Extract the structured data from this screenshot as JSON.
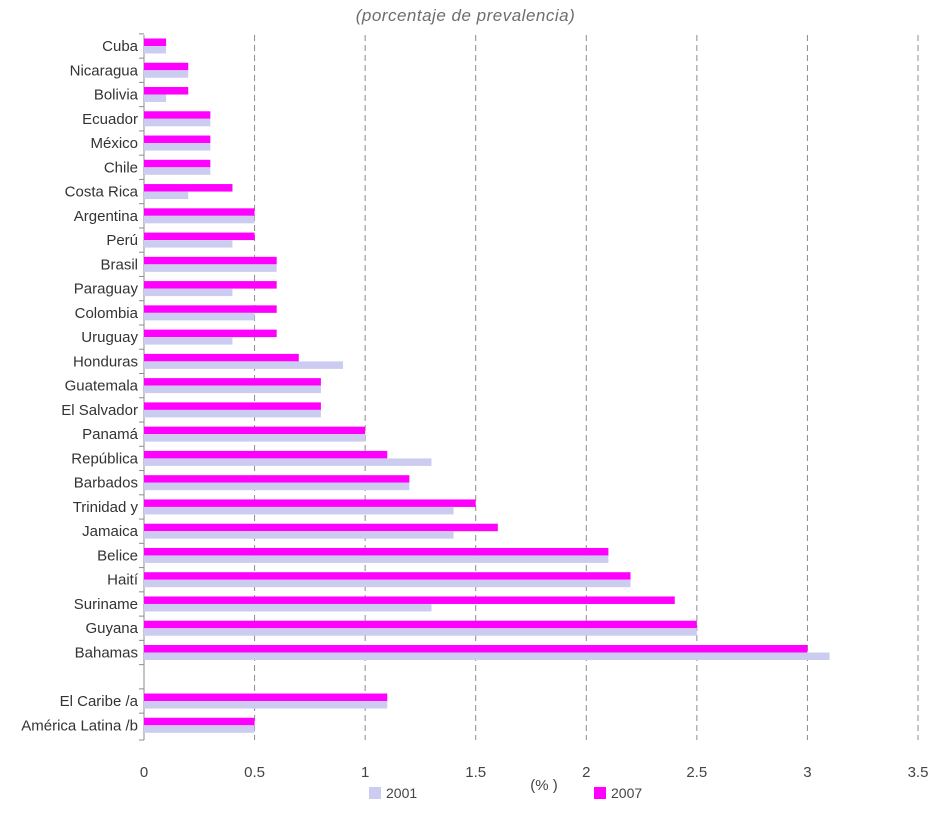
{
  "chart_data": {
    "type": "bar",
    "orientation": "horizontal",
    "subtitle": "(porcentaje de prevalencia)",
    "xlabel": "(% )",
    "xlim": [
      0,
      3.5
    ],
    "xticks": [
      "0",
      "0.5",
      "1",
      "1.5",
      "2",
      "2.5",
      "3",
      "3.5"
    ],
    "grid": "vertical-dashed",
    "legend_position": "bottom",
    "colors": {
      "2001": "#ccccf0",
      "2007": "#ff00ff"
    },
    "categories": [
      "Cuba",
      "Nicaragua",
      "Bolivia",
      "Ecuador",
      "México",
      "Chile",
      "Costa Rica",
      "Argentina",
      "Perú",
      "Brasil",
      "Paraguay",
      "Colombia",
      "Uruguay",
      "Honduras",
      "Guatemala",
      "El Salvador",
      "Panamá",
      "República",
      "Barbados",
      "Trinidad y",
      "Jamaica",
      "Belice",
      "Haití",
      "Suriname",
      "Guyana",
      "Bahamas",
      "",
      "El Caribe /a",
      "América Latina /b"
    ],
    "series": [
      {
        "name": "2001",
        "values": [
          0.1,
          0.2,
          0.1,
          0.3,
          0.3,
          0.3,
          0.2,
          0.5,
          0.4,
          0.6,
          0.4,
          0.5,
          0.4,
          0.9,
          0.8,
          0.8,
          1.0,
          1.3,
          1.2,
          1.4,
          1.4,
          2.1,
          2.2,
          1.3,
          2.5,
          3.1,
          null,
          1.1,
          0.5
        ]
      },
      {
        "name": "2007",
        "values": [
          0.1,
          0.2,
          0.2,
          0.3,
          0.3,
          0.3,
          0.4,
          0.5,
          0.5,
          0.6,
          0.6,
          0.6,
          0.6,
          0.7,
          0.8,
          0.8,
          1.0,
          1.1,
          1.2,
          1.5,
          1.6,
          2.1,
          2.2,
          2.4,
          2.5,
          3.0,
          null,
          1.1,
          0.5
        ]
      }
    ]
  }
}
